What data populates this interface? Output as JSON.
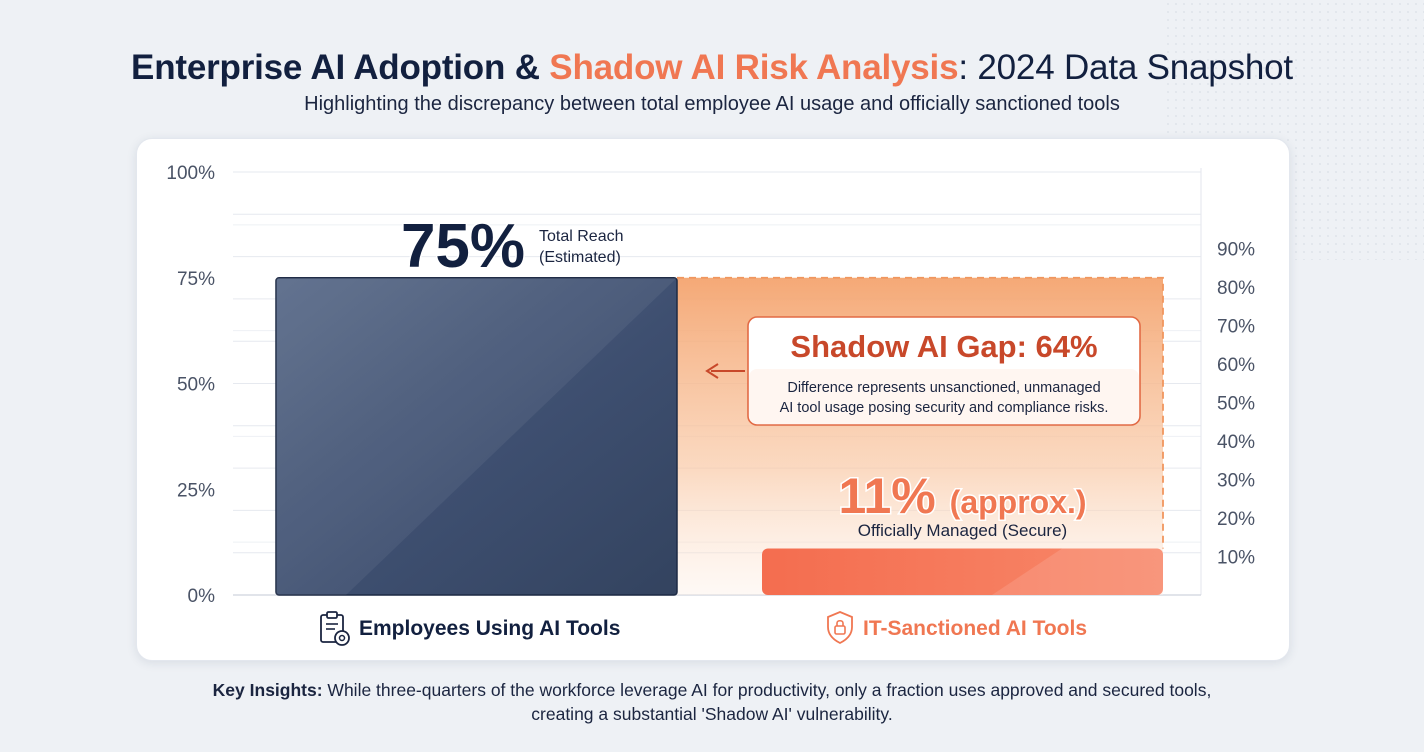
{
  "header": {
    "title_part1": "Enterprise AI Adoption & ",
    "title_accent": "Shadow AI Risk Analysis",
    "title_part3": ": 2024 Data Snapshot",
    "subtitle": "Highlighting the discrepancy between total employee AI usage and officially sanctioned tools"
  },
  "chart_data": {
    "type": "bar",
    "categories": [
      "Employees Using AI Tools",
      "IT-Sanctioned AI Tools"
    ],
    "values": [
      75,
      11
    ],
    "ylim": [
      0,
      100
    ],
    "left_ticks": [
      "0%",
      "25%",
      "50%",
      "75%",
      "100%"
    ],
    "left_tick_values": [
      0,
      25,
      50,
      75,
      100
    ],
    "right_ticks": [
      "10%",
      "20%",
      "30%",
      "40%",
      "50%",
      "60%",
      "70%",
      "80%",
      "90%"
    ],
    "right_tick_values": [
      10,
      20,
      30,
      40,
      50,
      60,
      70,
      80,
      90
    ],
    "grid": true,
    "bar1_label_value": "75%",
    "bar1_label_text_line1": "Total Reach",
    "bar1_label_text_line2": "(Estimated)",
    "bar2_label_value": "11% (approx.)",
    "bar2_label_text": "Officially Managed (Secure)",
    "gap_value": 64,
    "gap_title": "Shadow AI Gap: 64%",
    "gap_desc_line1": "Difference represents unsanctioned, unmanaged",
    "gap_desc_line2": "AI tool usage posing security and compliance risks.",
    "colors": {
      "bar1": "#3d4e6e",
      "bar2": "#f47a58",
      "gap": "#f6a877",
      "accent_text": "#c8482a",
      "axis_text": "#4a5366"
    },
    "icons": [
      "clipboard-gear-icon",
      "shield-lock-icon"
    ]
  },
  "footer": {
    "insight_label": "Key Insights:",
    "insight_text": " While three-quarters of the workforce leverage AI for productivity, only a fraction uses approved and secured tools, creating a substantial 'Shadow AI' vulnerability."
  }
}
